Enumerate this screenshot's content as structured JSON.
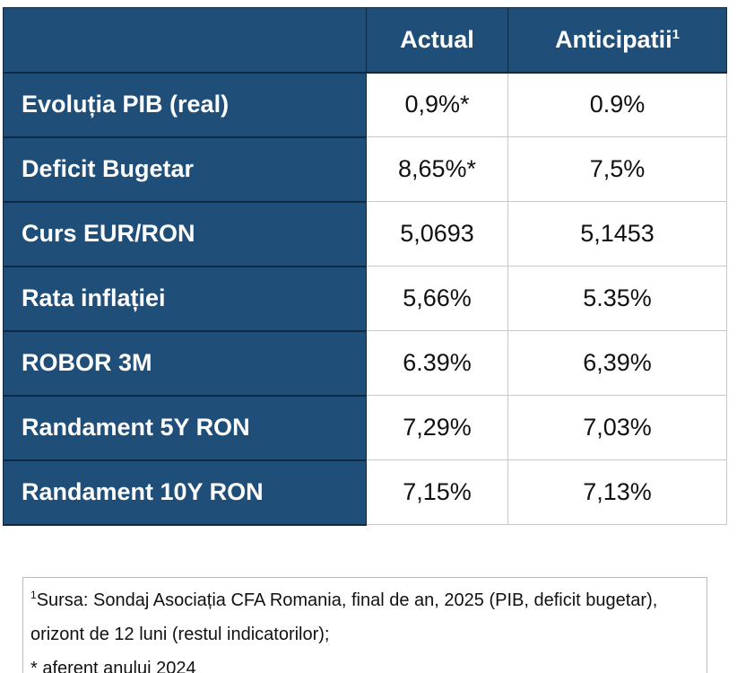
{
  "table": {
    "header": [
      "Actual",
      "Anticipatii"
    ],
    "header_note": "1",
    "rows": [
      [
        "Evoluția PIB (real)",
        "0,9%*",
        "0.9%"
      ],
      [
        "Deficit Bugetar",
        "8,65%*",
        "7,5%"
      ],
      [
        "Curs EUR/RON",
        "5,0693",
        "5,1453"
      ],
      [
        "Rata inflației",
        "5,66%",
        "5.35%"
      ],
      [
        "ROBOR 3M",
        "6.39%",
        "6,39%"
      ],
      [
        "Randament 5Y RON",
        "7,29%",
        "7,03%"
      ],
      [
        "Randament 10Y RON",
        "7,15%",
        "7,13%"
      ]
    ]
  },
  "footnote": {
    "marker": "1",
    "lines": [
      "Sursa: Sondaj Asociația CFA Romania, final de an, 2025 (PIB, deficit bugetar), orizont de 12 luni (restul indicatorilor);",
      "* aferent anului 2024"
    ]
  }
}
